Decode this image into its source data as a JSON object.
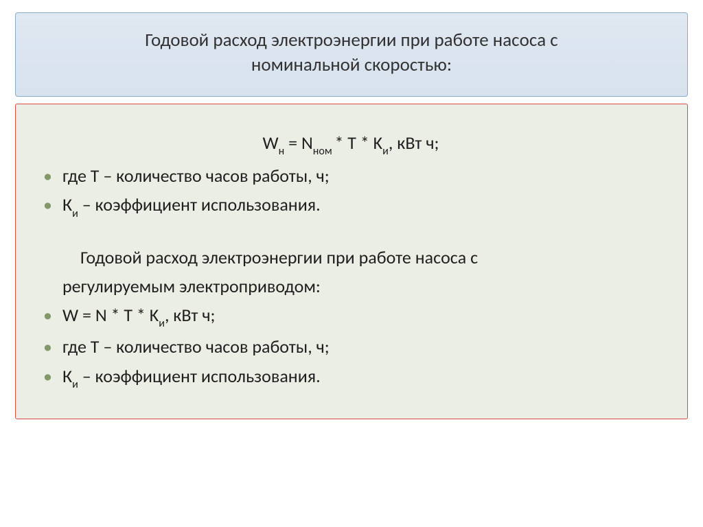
{
  "title": {
    "line1": "Годовой расход электроэнергии при работе насоса с",
    "line2": "номинальной скоростью:"
  },
  "content": {
    "formula1": {
      "pre": "W",
      "sub1": "н",
      "mid1": " = N",
      "sub2": "ном ",
      "mid2": "* T * K",
      "sub3": "и",
      "tail": ", кВт ч;"
    },
    "line2": "где Т – количество часов работы, ч;",
    "line3": {
      "pre": "К",
      "sub": "и",
      "tail": " – коэффициент использования."
    },
    "line4a": "Годовой расход электроэнергии при работе насоса с",
    "line4b": "регулируемым электроприводом:",
    "formula2": {
      "pre": "W = N * T * K",
      "sub": "и",
      "tail": ", кВт ч;"
    },
    "line6": "где Т – количество часов работы, ч;",
    "line7": {
      "pre": "К",
      "sub": "и",
      "tail": " – коэффициент использования."
    }
  },
  "colors": {
    "title_bg_top": "#e0e8f1",
    "title_bg_bottom": "#d7e2ed",
    "title_border": "#8aa9c8",
    "content_bg": "#ebeee4",
    "content_border": "#d94a3f",
    "bullet_color": "#83986a",
    "text_color": "#1f1f1f"
  },
  "fonts": {
    "title_size_pt": 20,
    "body_size_pt": 20
  }
}
